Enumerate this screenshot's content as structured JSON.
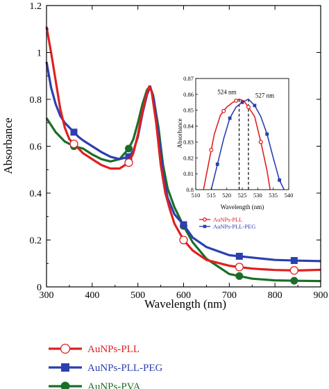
{
  "chart_data": {
    "type": "line",
    "xlabel": "Wavelength (nm)",
    "ylabel": "Absorbance",
    "xlim": [
      300,
      900
    ],
    "ylim": [
      0,
      1.2
    ],
    "xticks": [
      "300",
      "400",
      "500",
      "600",
      "700",
      "800",
      "900"
    ],
    "yticks": [
      "0",
      "0.2",
      "0.4",
      "0.6",
      "0.8",
      "1",
      "1.2"
    ],
    "series": [
      {
        "name": "AuNPs-PLL",
        "color": "#e02020",
        "marker": "open-circle",
        "x": [
          300,
          310,
          320,
          330,
          340,
          350,
          360,
          370,
          380,
          400,
          420,
          440,
          460,
          480,
          490,
          500,
          510,
          520,
          525,
          530,
          540,
          550,
          560,
          570,
          580,
          600,
          620,
          650,
          700,
          750,
          800,
          850,
          900
        ],
        "y": [
          1.11,
          1.0,
          0.88,
          0.76,
          0.68,
          0.63,
          0.61,
          0.59,
          0.57,
          0.545,
          0.52,
          0.505,
          0.505,
          0.53,
          0.57,
          0.65,
          0.75,
          0.83,
          0.855,
          0.835,
          0.7,
          0.52,
          0.4,
          0.33,
          0.27,
          0.2,
          0.155,
          0.115,
          0.09,
          0.078,
          0.072,
          0.07,
          0.073
        ],
        "marker_x": [
          360,
          480,
          600,
          722,
          842
        ]
      },
      {
        "name": "AuNPs-PLL-PEG",
        "color": "#2c3fb0",
        "marker": "filled-square",
        "x": [
          300,
          310,
          320,
          330,
          340,
          350,
          360,
          370,
          380,
          400,
          420,
          440,
          460,
          480,
          490,
          500,
          510,
          520,
          527,
          535,
          545,
          555,
          565,
          580,
          600,
          620,
          650,
          700,
          750,
          800,
          850,
          900
        ],
        "y": [
          0.96,
          0.85,
          0.78,
          0.73,
          0.7,
          0.68,
          0.66,
          0.64,
          0.625,
          0.6,
          0.575,
          0.555,
          0.545,
          0.555,
          0.58,
          0.64,
          0.74,
          0.82,
          0.855,
          0.8,
          0.65,
          0.48,
          0.38,
          0.31,
          0.265,
          0.21,
          0.17,
          0.135,
          0.125,
          0.115,
          0.112,
          0.11
        ],
        "marker_x": [
          360,
          480,
          600,
          722,
          842
        ]
      },
      {
        "name": "AuNPs-PVA",
        "color": "#1a6e28",
        "marker": "filled-circle",
        "x": [
          300,
          310,
          320,
          330,
          340,
          350,
          360,
          370,
          380,
          400,
          420,
          440,
          460,
          480,
          490,
          500,
          510,
          520,
          526,
          533,
          545,
          555,
          565,
          580,
          600,
          620,
          650,
          700,
          750,
          800,
          850,
          900
        ],
        "y": [
          0.72,
          0.69,
          0.66,
          0.64,
          0.62,
          0.61,
          0.6,
          0.595,
          0.59,
          0.565,
          0.545,
          0.535,
          0.545,
          0.59,
          0.63,
          0.7,
          0.78,
          0.84,
          0.855,
          0.82,
          0.68,
          0.52,
          0.42,
          0.34,
          0.26,
          0.19,
          0.12,
          0.055,
          0.035,
          0.028,
          0.026,
          0.025
        ],
        "marker_x": [
          360,
          480,
          600,
          722,
          842
        ]
      }
    ],
    "inset": {
      "xlabel": "Wavelength (nm)",
      "ylabel": "Absorbance",
      "xlim": [
        510,
        540
      ],
      "ylim": [
        0.8,
        0.87
      ],
      "xticks": [
        "510",
        "515",
        "520",
        "525",
        "530",
        "535",
        "540"
      ],
      "yticks": [
        "0.8",
        "0.81",
        "0.82",
        "0.83",
        "0.84",
        "0.85",
        "0.86",
        "0.87"
      ],
      "series": [
        {
          "name": "AuNPs-PLL",
          "color": "#e02020",
          "marker": "open-circle",
          "x": [
            512.5,
            514.5,
            516,
            518,
            520,
            522,
            524,
            525.5,
            527,
            529,
            531,
            533,
            534
          ],
          "y": [
            0.8,
            0.82,
            0.835,
            0.847,
            0.852,
            0.855,
            0.857,
            0.856,
            0.852,
            0.846,
            0.83,
            0.812,
            0.8
          ],
          "marker_x": [
            515,
            519,
            523,
            527,
            531
          ]
        },
        {
          "name": "AuNPs-PLL-PEG",
          "color": "#2c3fb0",
          "marker": "filled-square",
          "x": [
            515,
            517,
            519,
            521,
            523,
            525,
            527,
            529,
            531,
            533,
            535,
            537,
            538.5
          ],
          "y": [
            0.8,
            0.816,
            0.832,
            0.845,
            0.852,
            0.855,
            0.857,
            0.853,
            0.846,
            0.835,
            0.82,
            0.806,
            0.8
          ],
          "marker_x": [
            517,
            521,
            525,
            529,
            533,
            537
          ]
        }
      ],
      "annotations": [
        {
          "text": "524 nm",
          "x": 524,
          "y": 0.857
        },
        {
          "text": "527 nm",
          "x": 527,
          "y": 0.857
        }
      ]
    },
    "legend_placement": "bottom"
  }
}
